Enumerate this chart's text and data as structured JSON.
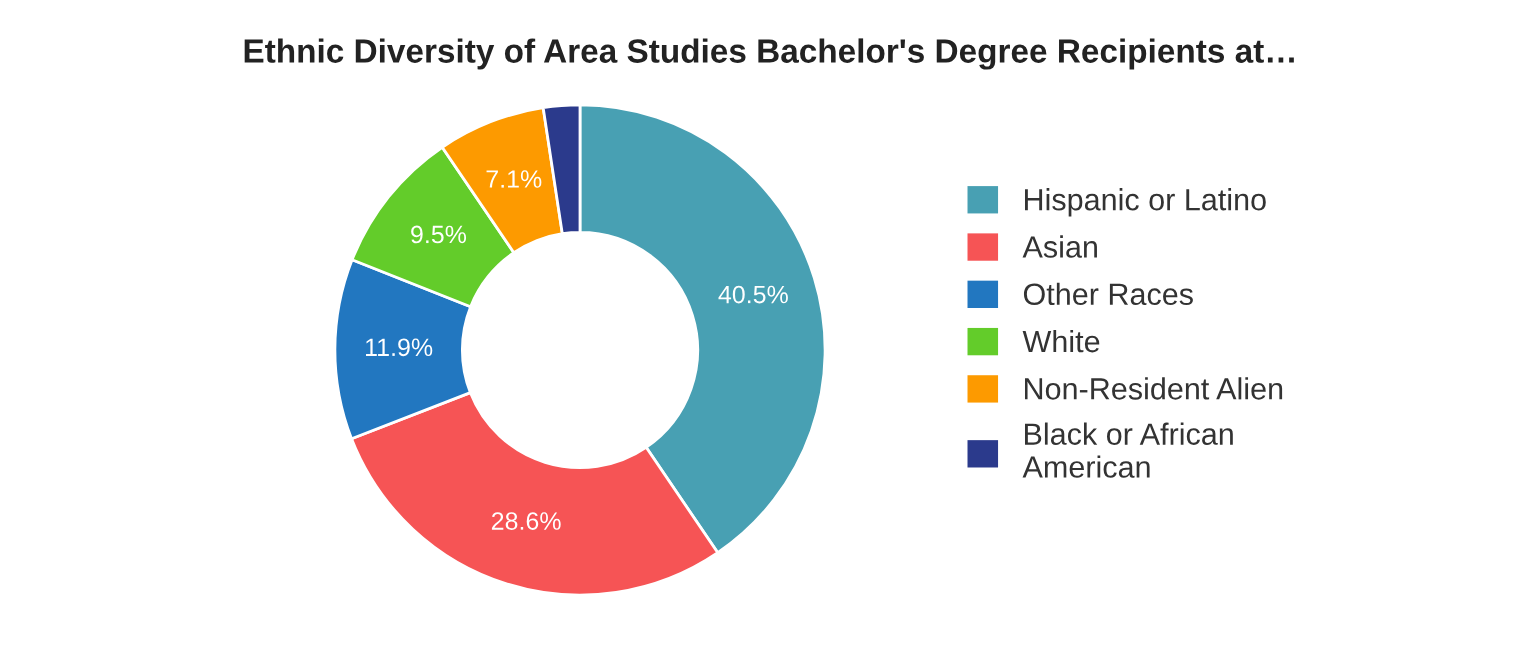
{
  "chart_data": {
    "type": "donut",
    "title": "Ethnic Diversity of Area Studies Bachelor's Degree Recipients at…",
    "categories": [
      "Hispanic or Latino",
      "Asian",
      "Other Races",
      "White",
      "Non-Resident Alien",
      "Black or African\nAmerican"
    ],
    "values": [
      40.5,
      28.6,
      11.9,
      9.5,
      7.1,
      2.4
    ],
    "colors": [
      "#48a0b3",
      "#f65455",
      "#2277c0",
      "#63cc2a",
      "#fd9a00",
      "#2b3a8c"
    ],
    "value_labels": [
      "40.5%",
      "28.6%",
      "11.9%",
      "9.5%",
      "7.1%",
      null
    ],
    "legend": "right"
  }
}
